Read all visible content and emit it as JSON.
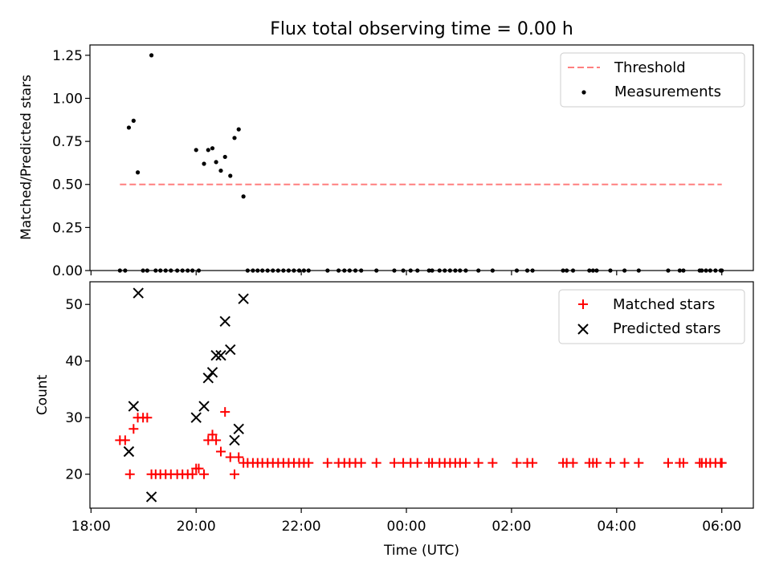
{
  "figure_title": "Flux total observing time = 0.00 h",
  "chart_data": [
    {
      "type": "scatter",
      "panel": "top",
      "xlabel": "",
      "ylabel": "Matched/Predicted stars",
      "x_unit": "hours since 18:00 UTC",
      "xlim": [
        -0.02,
        12.6
      ],
      "ylim": [
        0.0,
        1.31
      ],
      "y_ticks": [
        0.0,
        0.25,
        0.5,
        0.75,
        1.0,
        1.25
      ],
      "y_tick_labels": [
        "0.00",
        "0.25",
        "0.50",
        "0.75",
        "1.00",
        "1.25"
      ],
      "legend": {
        "placement": "top-right",
        "entries": [
          {
            "label": "Threshold",
            "style": "dashed-line",
            "color": "#ff7f7f"
          },
          {
            "label": "Measurements",
            "style": "dot",
            "color": "#000000"
          }
        ]
      },
      "threshold": {
        "name": "Threshold",
        "x": [
          0.55,
          12.0
        ],
        "y": 0.5,
        "color": "#ff7f7f"
      },
      "series": [
        {
          "name": "Measurements",
          "color": "#000000",
          "points": [
            [
              0.72,
              0.83
            ],
            [
              0.81,
              0.87
            ],
            [
              0.89,
              0.57
            ],
            [
              1.15,
              1.25
            ],
            [
              2.0,
              0.7
            ],
            [
              2.15,
              0.62
            ],
            [
              2.23,
              0.7
            ],
            [
              2.31,
              0.71
            ],
            [
              2.38,
              0.63
            ],
            [
              2.47,
              0.58
            ],
            [
              2.55,
              0.66
            ],
            [
              2.65,
              0.55
            ],
            [
              2.73,
              0.77
            ],
            [
              2.81,
              0.82
            ],
            [
              2.9,
              0.43
            ],
            [
              0.55,
              0
            ],
            [
              0.65,
              0
            ],
            [
              0.99,
              0
            ],
            [
              1.07,
              0
            ],
            [
              1.23,
              0
            ],
            [
              1.32,
              0
            ],
            [
              1.42,
              0
            ],
            [
              1.52,
              0
            ],
            [
              1.64,
              0
            ],
            [
              1.74,
              0
            ],
            [
              1.84,
              0
            ],
            [
              1.93,
              0
            ],
            [
              2.05,
              0
            ],
            [
              2.98,
              0
            ],
            [
              3.08,
              0
            ],
            [
              3.17,
              0
            ],
            [
              3.26,
              0
            ],
            [
              3.36,
              0
            ],
            [
              3.46,
              0
            ],
            [
              3.56,
              0
            ],
            [
              3.66,
              0
            ],
            [
              3.76,
              0
            ],
            [
              3.86,
              0
            ],
            [
              3.96,
              0
            ],
            [
              4.05,
              0
            ],
            [
              4.14,
              0
            ],
            [
              4.5,
              0
            ],
            [
              4.71,
              0
            ],
            [
              4.82,
              0
            ],
            [
              4.92,
              0
            ],
            [
              5.03,
              0
            ],
            [
              5.14,
              0
            ],
            [
              5.43,
              0
            ],
            [
              5.77,
              0
            ],
            [
              5.94,
              0
            ],
            [
              6.08,
              0
            ],
            [
              6.21,
              0
            ],
            [
              6.43,
              0
            ],
            [
              6.49,
              0
            ],
            [
              6.63,
              0
            ],
            [
              6.73,
              0
            ],
            [
              6.83,
              0
            ],
            [
              6.93,
              0
            ],
            [
              7.02,
              0
            ],
            [
              7.13,
              0
            ],
            [
              7.37,
              0
            ],
            [
              7.64,
              0
            ],
            [
              8.1,
              0
            ],
            [
              8.3,
              0
            ],
            [
              8.4,
              0
            ],
            [
              8.98,
              0
            ],
            [
              9.05,
              0
            ],
            [
              9.17,
              0
            ],
            [
              9.48,
              0
            ],
            [
              9.55,
              0
            ],
            [
              9.62,
              0
            ],
            [
              9.88,
              0
            ],
            [
              10.15,
              0
            ],
            [
              10.42,
              0
            ],
            [
              10.98,
              0
            ],
            [
              11.2,
              0
            ],
            [
              11.27,
              0
            ],
            [
              11.58,
              0
            ],
            [
              11.62,
              0
            ],
            [
              11.7,
              0
            ],
            [
              11.78,
              0
            ],
            [
              11.88,
              0
            ],
            [
              11.98,
              0
            ],
            [
              12.0,
              0
            ]
          ]
        }
      ]
    },
    {
      "type": "scatter",
      "panel": "bottom",
      "xlabel": "Time (UTC)",
      "ylabel": "Count",
      "x_unit": "hours since 18:00 UTC",
      "xlim": [
        -0.02,
        12.6
      ],
      "ylim": [
        14,
        54
      ],
      "y_ticks": [
        20,
        30,
        40,
        50
      ],
      "x_ticks": [
        0,
        2,
        4,
        6,
        8,
        10,
        12
      ],
      "x_tick_labels": [
        "18:00",
        "20:00",
        "22:00",
        "00:00",
        "02:00",
        "04:00",
        "06:00"
      ],
      "legend": {
        "placement": "top-right",
        "entries": [
          {
            "label": "Matched stars",
            "style": "plus",
            "color": "#ff0000"
          },
          {
            "label": "Predicted stars",
            "style": "x",
            "color": "#000000"
          }
        ]
      },
      "series": [
        {
          "name": "Matched stars",
          "color": "#ff0000",
          "marker": "plus",
          "points": [
            [
              0.55,
              26
            ],
            [
              0.65,
              26
            ],
            [
              0.74,
              20
            ],
            [
              0.81,
              28
            ],
            [
              0.89,
              30
            ],
            [
              0.99,
              30
            ],
            [
              1.07,
              30
            ],
            [
              1.15,
              20
            ],
            [
              1.23,
              20
            ],
            [
              1.32,
              20
            ],
            [
              1.42,
              20
            ],
            [
              1.52,
              20
            ],
            [
              1.64,
              20
            ],
            [
              1.74,
              20
            ],
            [
              1.84,
              20
            ],
            [
              1.93,
              20
            ],
            [
              2.0,
              21
            ],
            [
              2.05,
              21
            ],
            [
              2.15,
              20
            ],
            [
              2.23,
              26
            ],
            [
              2.31,
              27
            ],
            [
              2.38,
              26
            ],
            [
              2.47,
              24
            ],
            [
              2.55,
              31
            ],
            [
              2.65,
              23
            ],
            [
              2.73,
              20
            ],
            [
              2.81,
              23
            ],
            [
              2.9,
              22
            ],
            [
              2.98,
              22
            ],
            [
              3.08,
              22
            ],
            [
              3.17,
              22
            ],
            [
              3.26,
              22
            ],
            [
              3.36,
              22
            ],
            [
              3.46,
              22
            ],
            [
              3.56,
              22
            ],
            [
              3.66,
              22
            ],
            [
              3.76,
              22
            ],
            [
              3.86,
              22
            ],
            [
              3.96,
              22
            ],
            [
              4.05,
              22
            ],
            [
              4.14,
              22
            ],
            [
              4.5,
              22
            ],
            [
              4.71,
              22
            ],
            [
              4.82,
              22
            ],
            [
              4.92,
              22
            ],
            [
              5.03,
              22
            ],
            [
              5.14,
              22
            ],
            [
              5.43,
              22
            ],
            [
              5.77,
              22
            ],
            [
              5.94,
              22
            ],
            [
              6.08,
              22
            ],
            [
              6.21,
              22
            ],
            [
              6.43,
              22
            ],
            [
              6.49,
              22
            ],
            [
              6.63,
              22
            ],
            [
              6.73,
              22
            ],
            [
              6.83,
              22
            ],
            [
              6.93,
              22
            ],
            [
              7.02,
              22
            ],
            [
              7.13,
              22
            ],
            [
              7.37,
              22
            ],
            [
              7.64,
              22
            ],
            [
              8.1,
              22
            ],
            [
              8.3,
              22
            ],
            [
              8.4,
              22
            ],
            [
              8.98,
              22
            ],
            [
              9.05,
              22
            ],
            [
              9.17,
              22
            ],
            [
              9.48,
              22
            ],
            [
              9.55,
              22
            ],
            [
              9.62,
              22
            ],
            [
              9.88,
              22
            ],
            [
              10.15,
              22
            ],
            [
              10.42,
              22
            ],
            [
              10.98,
              22
            ],
            [
              11.2,
              22
            ],
            [
              11.27,
              22
            ],
            [
              11.58,
              22
            ],
            [
              11.62,
              22
            ],
            [
              11.7,
              22
            ],
            [
              11.78,
              22
            ],
            [
              11.88,
              22
            ],
            [
              11.98,
              22
            ],
            [
              12.0,
              22
            ]
          ]
        },
        {
          "name": "Predicted stars",
          "color": "#000000",
          "marker": "x",
          "points": [
            [
              0.72,
              24
            ],
            [
              0.81,
              32
            ],
            [
              0.9,
              52
            ],
            [
              1.15,
              16
            ],
            [
              2.0,
              30
            ],
            [
              2.15,
              32
            ],
            [
              2.23,
              37
            ],
            [
              2.31,
              38
            ],
            [
              2.38,
              41
            ],
            [
              2.47,
              41
            ],
            [
              2.55,
              47
            ],
            [
              2.65,
              42
            ],
            [
              2.73,
              26
            ],
            [
              2.81,
              28
            ],
            [
              2.9,
              51
            ]
          ]
        }
      ]
    }
  ]
}
